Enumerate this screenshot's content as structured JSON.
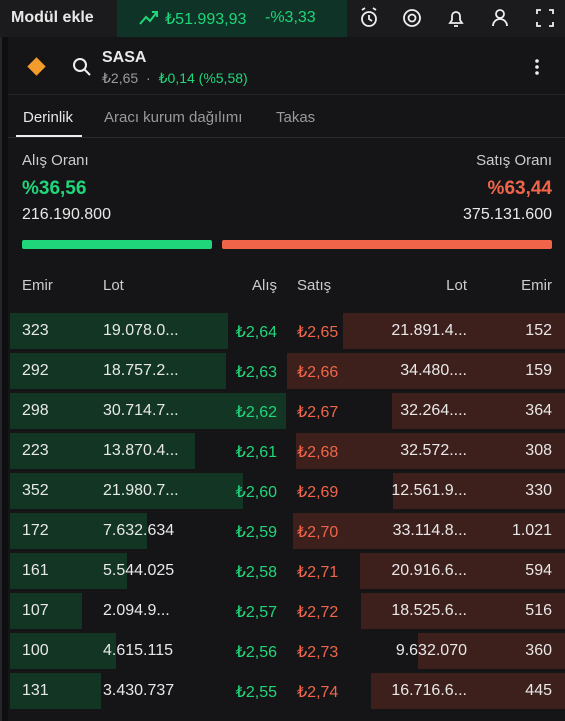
{
  "topbar": {
    "button": "Modül ekle",
    "index_value": "₺51.993,93",
    "index_change": "-%3,33"
  },
  "header": {
    "symbol": "SASA",
    "price": "₺2,65",
    "separator": "·",
    "change": "₺0,14 (%5,58)"
  },
  "tabs": [
    "Derinlik",
    "Aracı kurum dağılımı",
    "Takas"
  ],
  "summary": {
    "buy_label": "Alış Oranı",
    "buy_ratio": "%36,56",
    "buy_volume": "216.190.800",
    "sell_label": "Satış Oranı",
    "sell_ratio": "%63,44",
    "sell_volume": "375.131.600"
  },
  "table": {
    "columns": [
      "Emir",
      "Lot",
      "Alış",
      "Satış",
      "Lot",
      "Emir"
    ],
    "rows": [
      [
        "323",
        "19.078.0...",
        "₺2,64",
        "₺2,65",
        "21.891.4...",
        "152"
      ],
      [
        "292",
        "18.757.2...",
        "₺2,63",
        "₺2,66",
        "34.480....",
        "159"
      ],
      [
        "298",
        "30.714.7...",
        "₺2,62",
        "₺2,67",
        "32.264....",
        "364"
      ],
      [
        "223",
        "13.870.4...",
        "₺2,61",
        "₺2,68",
        "32.572....",
        "308"
      ],
      [
        "352",
        "21.980.7...",
        "₺2,60",
        "₺2,69",
        "12.561.9...",
        "330"
      ],
      [
        "172",
        "7.632.634",
        "₺2,59",
        "₺2,70",
        "33.114.8...",
        "1.021"
      ],
      [
        "161",
        "5.544.025",
        "₺2,58",
        "₺2,71",
        "20.916.6...",
        "594"
      ],
      [
        "107",
        "2.094.9...",
        "₺2,57",
        "₺2,72",
        "18.525.6...",
        "516"
      ],
      [
        "100",
        "4.615.115",
        "₺2,56",
        "₺2,73",
        "9.632.070",
        "360"
      ],
      [
        "131",
        "3.430.737",
        "₺2,55",
        "₺2,74",
        "16.716.6...",
        "445"
      ]
    ]
  }
}
